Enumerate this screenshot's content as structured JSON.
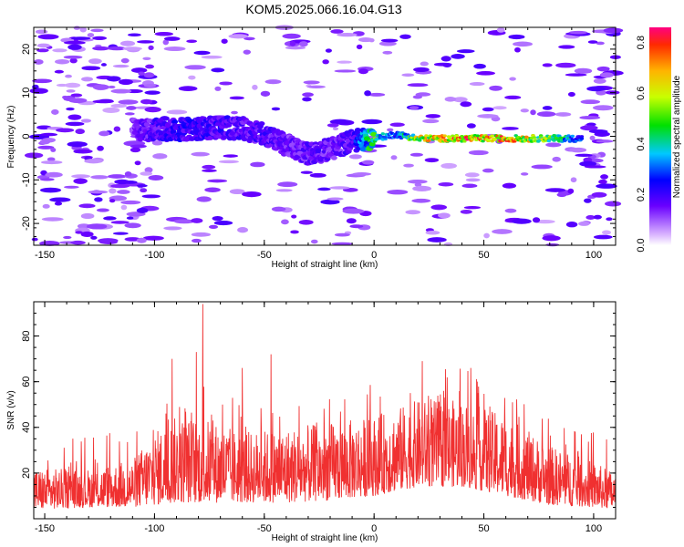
{
  "title": "KOM5.2025.066.16.04.G13",
  "chart_data": [
    {
      "type": "heatmap",
      "xlabel": "Height of straight line (km)",
      "ylabel": "Frequency (Hz)",
      "xlim": [
        -155,
        110
      ],
      "ylim": [
        -25,
        25
      ],
      "xticks": [
        -150,
        -100,
        -50,
        0,
        50,
        100
      ],
      "yticks": [
        -20,
        -10,
        0,
        10,
        20
      ],
      "colorbar": {
        "label": "Normalized spectral amplitude",
        "range": [
          0.0,
          0.86
        ],
        "ticks": [
          0.0,
          0.2,
          0.4,
          0.6,
          0.8
        ]
      },
      "ridge": [
        {
          "x": -110,
          "y": 1.5,
          "amp": 0.15
        },
        {
          "x": -100,
          "y": 1.5,
          "amp": 0.22
        },
        {
          "x": -90,
          "y": 1.5,
          "amp": 0.25
        },
        {
          "x": -80,
          "y": 1.8,
          "amp": 0.24
        },
        {
          "x": -70,
          "y": 2.0,
          "amp": 0.23
        },
        {
          "x": -60,
          "y": 1.8,
          "amp": 0.22
        },
        {
          "x": -50,
          "y": 0.5,
          "amp": 0.22
        },
        {
          "x": -40,
          "y": -2.0,
          "amp": 0.18
        },
        {
          "x": -30,
          "y": -4.0,
          "amp": 0.2
        },
        {
          "x": -20,
          "y": -3.0,
          "amp": 0.18
        },
        {
          "x": -10,
          "y": -1.0,
          "amp": 0.22
        },
        {
          "x": 0,
          "y": -0.5,
          "amp": 0.55
        },
        {
          "x": 10,
          "y": 0.5,
          "amp": 0.3
        },
        {
          "x": 20,
          "y": -0.5,
          "amp": 0.7
        },
        {
          "x": 40,
          "y": -0.5,
          "amp": 0.82
        },
        {
          "x": 60,
          "y": -0.5,
          "amp": 0.8
        },
        {
          "x": 80,
          "y": -0.5,
          "amp": 0.6
        },
        {
          "x": 95,
          "y": -0.5,
          "amp": 0.3
        }
      ]
    },
    {
      "type": "line",
      "xlabel": "Height of straight line (km)",
      "ylabel": "SNR (v/v)",
      "xlim": [
        -155,
        110
      ],
      "ylim": [
        0,
        95
      ],
      "xticks": [
        -150,
        -100,
        -50,
        0,
        50,
        100
      ],
      "yticks": [
        20,
        40,
        60,
        80
      ],
      "color": "#f03030",
      "envelope": [
        {
          "x": -155,
          "lo": 4,
          "hi": 22
        },
        {
          "x": -130,
          "lo": 5,
          "hi": 22
        },
        {
          "x": -110,
          "lo": 5,
          "hi": 26
        },
        {
          "x": -100,
          "lo": 6,
          "hi": 38
        },
        {
          "x": -90,
          "lo": 7,
          "hi": 45
        },
        {
          "x": -80,
          "lo": 7,
          "hi": 45
        },
        {
          "x": -60,
          "lo": 7,
          "hi": 38
        },
        {
          "x": -40,
          "lo": 7,
          "hi": 40
        },
        {
          "x": -20,
          "lo": 8,
          "hi": 42
        },
        {
          "x": 0,
          "lo": 10,
          "hi": 45
        },
        {
          "x": 20,
          "lo": 14,
          "hi": 52
        },
        {
          "x": 40,
          "lo": 14,
          "hi": 52
        },
        {
          "x": 60,
          "lo": 10,
          "hi": 45
        },
        {
          "x": 80,
          "lo": 6,
          "hi": 32
        },
        {
          "x": 100,
          "lo": 5,
          "hi": 25
        },
        {
          "x": 110,
          "lo": 4,
          "hi": 20
        }
      ],
      "peaks": [
        {
          "x": -92,
          "y": 70
        },
        {
          "x": -81,
          "y": 73
        },
        {
          "x": -78,
          "y": 94
        },
        {
          "x": -60,
          "y": 66
        },
        {
          "x": -47,
          "y": 72
        },
        {
          "x": 22,
          "y": 69
        },
        {
          "x": 44,
          "y": 66
        }
      ]
    }
  ]
}
